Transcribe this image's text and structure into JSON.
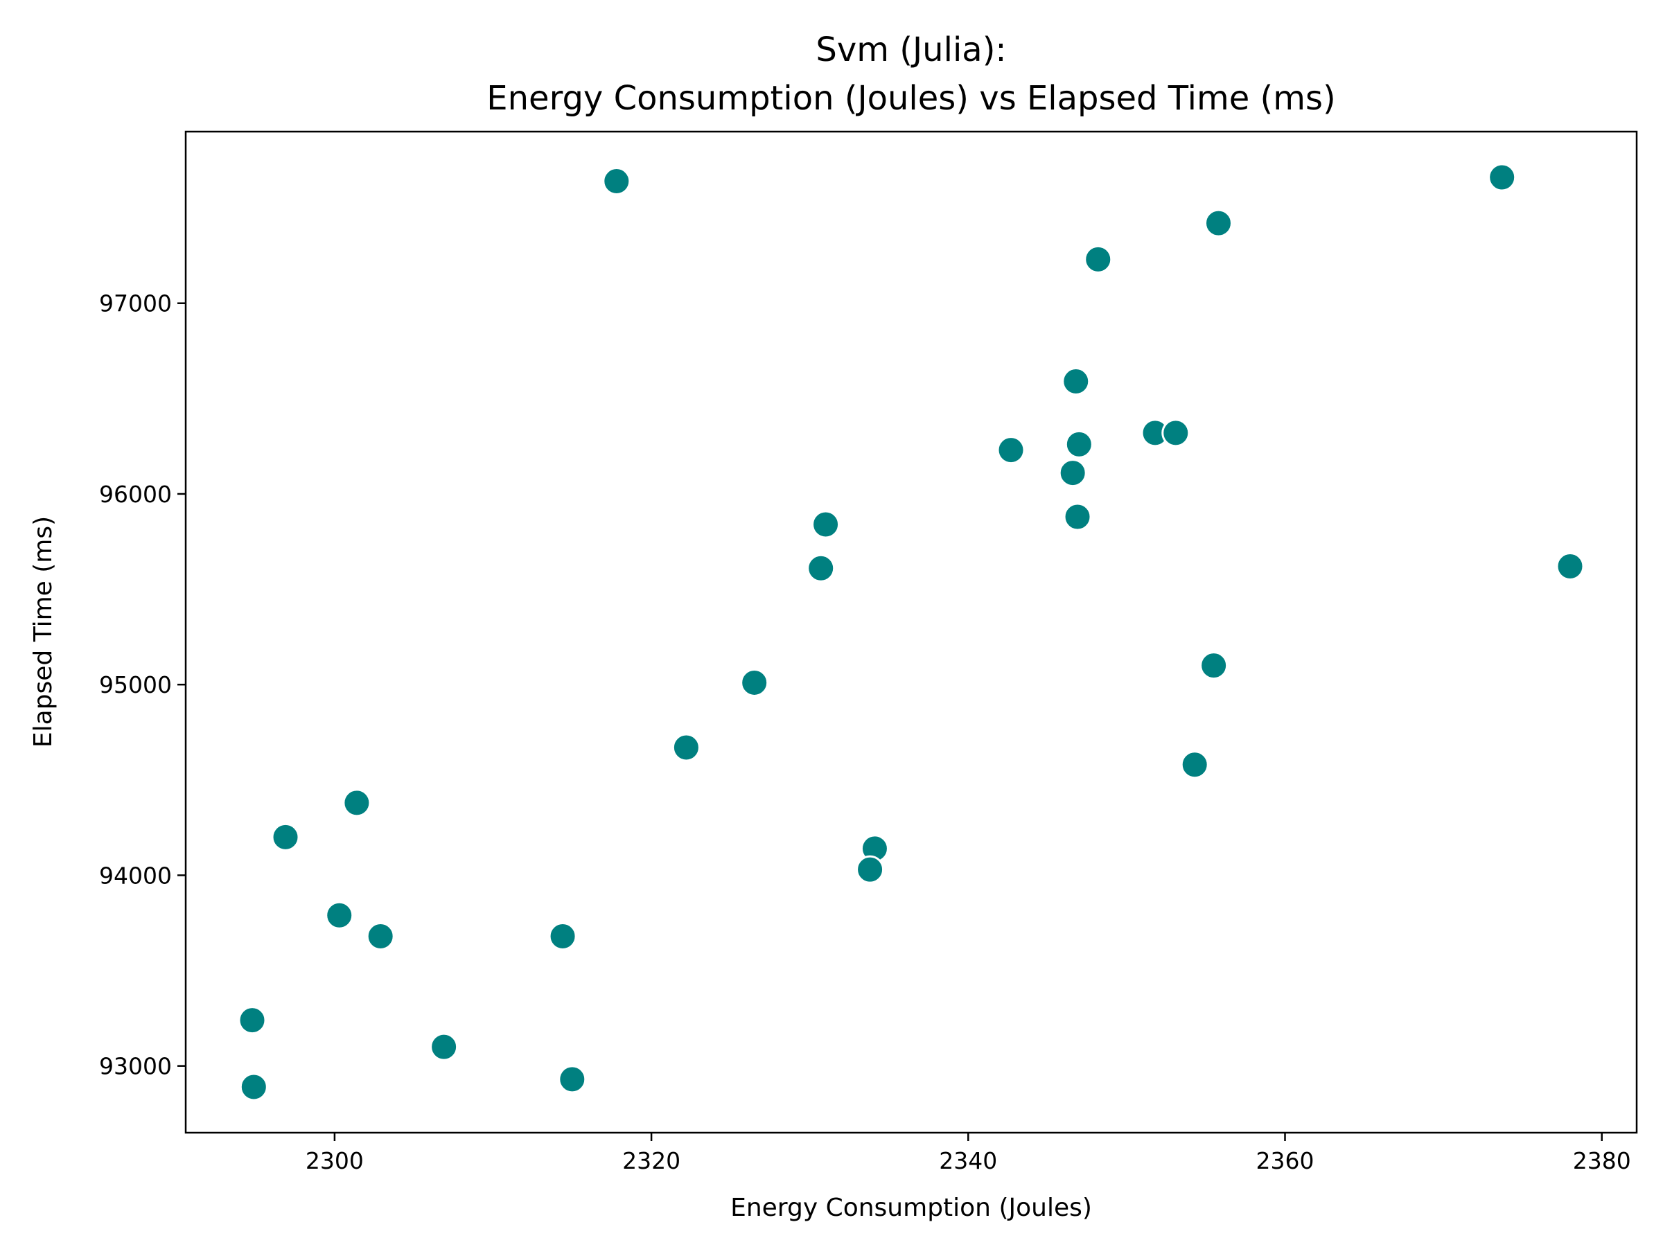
{
  "chart_data": {
    "type": "scatter",
    "title_line1": "Svm (Julia):",
    "title_line2": "Energy Consumption (Joules) vs Elapsed Time (ms)",
    "xlabel": "Energy Consumption (Joules)",
    "ylabel": "Elapsed Time (ms)",
    "xlim": [
      2290.6,
      2382.2
    ],
    "ylim": [
      92650,
      97900
    ],
    "x_ticks": [
      2300,
      2320,
      2340,
      2360,
      2380
    ],
    "y_ticks": [
      93000,
      94000,
      95000,
      96000,
      97000
    ],
    "grid": false,
    "marker_color": "#008080",
    "points": [
      {
        "x": 2317.8,
        "y": 97640
      },
      {
        "x": 2373.7,
        "y": 97660
      },
      {
        "x": 2355.8,
        "y": 97420
      },
      {
        "x": 2348.2,
        "y": 97230
      },
      {
        "x": 2346.8,
        "y": 96590
      },
      {
        "x": 2351.8,
        "y": 96320
      },
      {
        "x": 2353.1,
        "y": 96320
      },
      {
        "x": 2347.0,
        "y": 96260
      },
      {
        "x": 2342.7,
        "y": 96230
      },
      {
        "x": 2346.6,
        "y": 96110
      },
      {
        "x": 2346.9,
        "y": 95880
      },
      {
        "x": 2331.0,
        "y": 95840
      },
      {
        "x": 2330.7,
        "y": 95610
      },
      {
        "x": 2378.0,
        "y": 95620
      },
      {
        "x": 2355.5,
        "y": 95100
      },
      {
        "x": 2326.5,
        "y": 95010
      },
      {
        "x": 2322.2,
        "y": 94670
      },
      {
        "x": 2354.3,
        "y": 94580
      },
      {
        "x": 2301.4,
        "y": 94380
      },
      {
        "x": 2296.9,
        "y": 94200
      },
      {
        "x": 2334.1,
        "y": 94140
      },
      {
        "x": 2333.8,
        "y": 94030
      },
      {
        "x": 2300.3,
        "y": 93790
      },
      {
        "x": 2302.9,
        "y": 93680
      },
      {
        "x": 2314.4,
        "y": 93680
      },
      {
        "x": 2294.8,
        "y": 93240
      },
      {
        "x": 2306.9,
        "y": 93100
      },
      {
        "x": 2315.0,
        "y": 92930
      },
      {
        "x": 2294.9,
        "y": 92890
      }
    ]
  }
}
